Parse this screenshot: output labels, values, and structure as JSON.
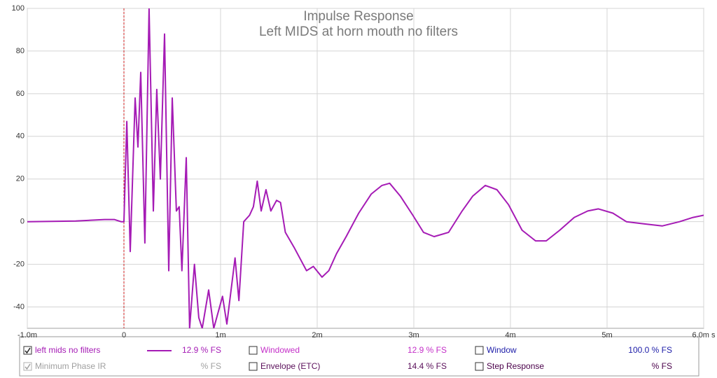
{
  "chart_data": {
    "type": "line",
    "title": "Impulse Response",
    "subtitle": "Left MIDS at horn mouth no filters",
    "x": [
      -1.0,
      -0.5,
      -0.2,
      -0.1,
      -0.03,
      0,
      0.03,
      0.065,
      0.116,
      0.145,
      0.174,
      0.217,
      0.26,
      0.304,
      0.34,
      0.377,
      0.42,
      0.464,
      0.5,
      0.543,
      0.572,
      0.6,
      0.645,
      0.68,
      0.73,
      0.775,
      0.81,
      0.877,
      0.93,
      1.02,
      1.065,
      1.15,
      1.19,
      1.24,
      1.3,
      1.34,
      1.38,
      1.42,
      1.47,
      1.52,
      1.58,
      1.62,
      1.67,
      1.76,
      1.89,
      1.96,
      2.05,
      2.12,
      2.2,
      2.3,
      2.43,
      2.56,
      2.67,
      2.75,
      2.86,
      2.99,
      3.1,
      3.21,
      3.36,
      3.5,
      3.61,
      3.74,
      3.86,
      3.98,
      4.12,
      4.26,
      4.37,
      4.51,
      4.66,
      4.8,
      4.91,
      5.06,
      5.2,
      5.38,
      5.57,
      5.75,
      5.89,
      6.0
    ],
    "series": [
      {
        "name": "left mids no filters",
        "color": "#a51bb5",
        "values": [
          0,
          0.3,
          1,
          1,
          0,
          0,
          47,
          -14,
          58,
          35,
          70,
          -10,
          100,
          5,
          62,
          20,
          88,
          -23,
          58,
          5,
          7,
          -23,
          30,
          -50,
          -20,
          -45,
          -50,
          -32,
          -50,
          -35,
          -48,
          -17,
          -37,
          0,
          3,
          7,
          19,
          5,
          15,
          5,
          10,
          9,
          -5,
          -12,
          -23,
          -21,
          -26,
          -23,
          -15,
          -7,
          4,
          13,
          17,
          18,
          12,
          3,
          -5,
          -7,
          -5,
          5,
          12,
          17,
          15,
          8,
          -4,
          -9,
          -9,
          -4,
          2,
          5,
          6,
          4,
          0,
          -1,
          -2,
          0,
          2,
          3
        ]
      }
    ],
    "xlim": [
      -1.0,
      6.0
    ],
    "xticks": [
      {
        "value": -1,
        "label": "-1.0m"
      },
      0,
      {
        "value": 1,
        "label": "1m"
      },
      {
        "value": 2,
        "label": "2m"
      },
      {
        "value": 3,
        "label": "3m"
      },
      {
        "value": 4,
        "label": "4m"
      },
      {
        "value": 5,
        "label": "5m"
      },
      {
        "value": 6,
        "label": "6.0m s"
      }
    ],
    "ylim": [
      -50,
      100
    ],
    "yticks": [
      -40,
      -20,
      0,
      20,
      40,
      60,
      80,
      100
    ],
    "grid": true
  },
  "controls": [
    {
      "reading": "12.9 % FS",
      "checked": true,
      "color": "#a51bb5"
    },
    {
      "label": "Minimum Phase IR",
      "reading": "% FS",
      "checked": true,
      "color": "#a0a0a0"
    },
    {
      "label": "Windowed",
      "reading": "12.9 % FS",
      "checked": false,
      "color": "#c42fc8"
    },
    {
      "label": "Envelope (ETC)",
      "reading": "14.4 % FS",
      "checked": false,
      "color": "#5a0f5a"
    },
    {
      "label": "Window",
      "reading": "100.0 % FS",
      "checked": false,
      "color": "#1c1ca8"
    },
    {
      "label": "Step Response",
      "reading": "% FS",
      "checked": false,
      "color": "#4a004a"
    }
  ]
}
